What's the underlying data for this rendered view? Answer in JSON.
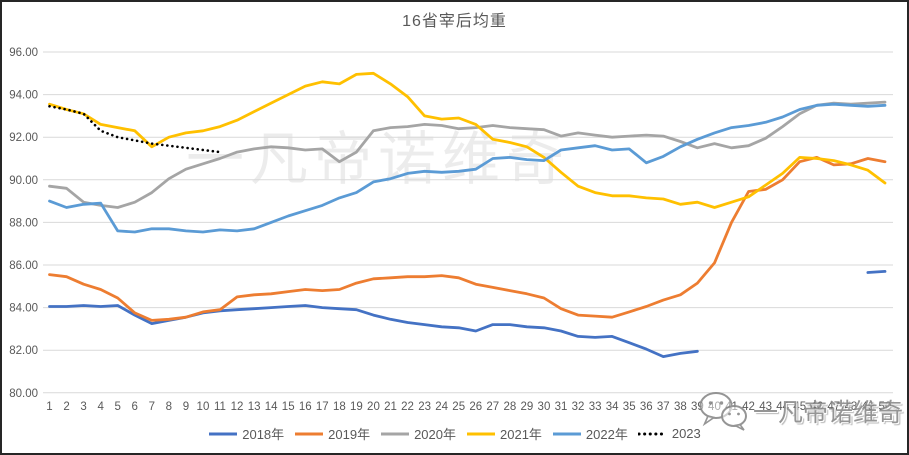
{
  "title": "16省宰后均重",
  "watermark": {
    "center": "一凡帝诺维奇",
    "corner": "一凡帝诺维奇"
  },
  "colors": {
    "grid": "#D9D9D9",
    "axis_text": "#595959",
    "title_text": "#595959",
    "legend_text": "#595959",
    "frame_border": "#262626",
    "watermark_corner": "#8a8a8a"
  },
  "chart_data": {
    "type": "line",
    "title": "16省宰后均重",
    "xlabel": "",
    "ylabel": "",
    "grid": true,
    "legend_position": "bottom",
    "y_axis": {
      "min": 80,
      "max": 96,
      "step": 2,
      "decimals": 2
    },
    "x_labels": [
      "1",
      "2",
      "3",
      "4",
      "5",
      "6",
      "7",
      "8",
      "9",
      "10",
      "11",
      "12",
      "13",
      "14",
      "15",
      "16",
      "17",
      "18",
      "19",
      "20",
      "21",
      "22",
      "23",
      "24",
      "25",
      "26",
      "27",
      "28",
      "29",
      "30",
      "31",
      "32",
      "33",
      "34",
      "35",
      "36",
      "37",
      "38",
      "39",
      "40",
      "41",
      "42",
      "43",
      "44",
      "45",
      "46",
      "47",
      "48",
      "49",
      "50"
    ],
    "series": [
      {
        "name": "2018年",
        "color": "#4472C4",
        "dashed": false,
        "values": [
          84.05,
          84.05,
          84.1,
          84.05,
          84.1,
          83.65,
          83.25,
          83.4,
          83.55,
          83.75,
          83.85,
          83.9,
          83.95,
          84.0,
          84.05,
          84.1,
          84.0,
          83.95,
          83.9,
          83.65,
          83.45,
          83.3,
          83.2,
          83.1,
          83.05,
          82.9,
          83.2,
          83.2,
          83.1,
          83.05,
          82.9,
          82.65,
          82.6,
          82.65,
          82.35,
          82.05,
          81.7,
          81.85,
          81.95,
          null,
          null,
          null,
          null,
          null,
          null,
          null,
          null,
          null,
          85.65,
          85.7
        ]
      },
      {
        "name": "2019年",
        "color": "#ED7D31",
        "dashed": false,
        "values": [
          85.55,
          85.45,
          85.1,
          84.85,
          84.45,
          83.75,
          83.4,
          83.45,
          83.55,
          83.8,
          83.9,
          84.5,
          84.6,
          84.65,
          84.75,
          84.85,
          84.8,
          84.85,
          85.15,
          85.35,
          85.4,
          85.45,
          85.45,
          85.5,
          85.4,
          85.1,
          84.95,
          84.8,
          84.65,
          84.45,
          83.95,
          83.65,
          83.6,
          83.55,
          83.8,
          84.05,
          84.35,
          84.6,
          85.15,
          86.1,
          88.0,
          89.45,
          89.55,
          90.0,
          90.85,
          91.05,
          90.7,
          90.75,
          91.0,
          90.85
        ]
      },
      {
        "name": "2020年",
        "color": "#A5A5A5",
        "dashed": false,
        "values": [
          89.7,
          89.6,
          88.95,
          88.8,
          88.7,
          88.95,
          89.4,
          90.05,
          90.5,
          90.75,
          91.0,
          91.3,
          91.45,
          91.55,
          91.5,
          91.4,
          91.45,
          90.85,
          91.3,
          92.3,
          92.45,
          92.5,
          92.6,
          92.55,
          92.4,
          92.45,
          92.55,
          92.45,
          92.4,
          92.35,
          92.05,
          92.2,
          92.1,
          92.0,
          92.05,
          92.1,
          92.05,
          91.8,
          91.5,
          91.7,
          91.5,
          91.6,
          91.95,
          92.5,
          93.1,
          93.5,
          93.6,
          93.55,
          93.6,
          93.65
        ]
      },
      {
        "name": "2021年",
        "color": "#FFC000",
        "dashed": false,
        "values": [
          93.55,
          93.3,
          93.1,
          92.6,
          92.45,
          92.3,
          91.55,
          92.0,
          92.2,
          92.3,
          92.5,
          92.8,
          93.2,
          93.6,
          94.0,
          94.4,
          94.6,
          94.5,
          94.95,
          95.0,
          94.5,
          93.9,
          93.0,
          92.85,
          92.9,
          92.6,
          91.9,
          91.75,
          91.55,
          91.05,
          90.35,
          89.7,
          89.4,
          89.25,
          89.25,
          89.15,
          89.1,
          88.85,
          88.95,
          88.7,
          88.95,
          89.2,
          89.75,
          90.3,
          91.05,
          91.0,
          90.9,
          90.7,
          90.45,
          89.85
        ]
      },
      {
        "name": "2022年",
        "color": "#5B9BD5",
        "dashed": false,
        "values": [
          89.0,
          88.7,
          88.85,
          88.9,
          87.6,
          87.55,
          87.7,
          87.7,
          87.6,
          87.55,
          87.65,
          87.6,
          87.7,
          88.0,
          88.3,
          88.55,
          88.8,
          89.15,
          89.4,
          89.9,
          90.05,
          90.3,
          90.4,
          90.35,
          90.4,
          90.5,
          91.0,
          91.05,
          90.95,
          90.9,
          91.4,
          91.5,
          91.6,
          91.4,
          91.45,
          90.8,
          91.1,
          91.55,
          91.9,
          92.2,
          92.45,
          92.55,
          92.7,
          92.95,
          93.3,
          93.5,
          93.55,
          93.5,
          93.45,
          93.5
        ]
      },
      {
        "name": "2023",
        "color": "#000000",
        "dashed": true,
        "values": [
          93.45,
          93.3,
          93.1,
          92.3,
          92.0,
          91.85,
          91.7,
          91.6,
          91.5,
          91.4,
          91.3
        ]
      }
    ]
  }
}
